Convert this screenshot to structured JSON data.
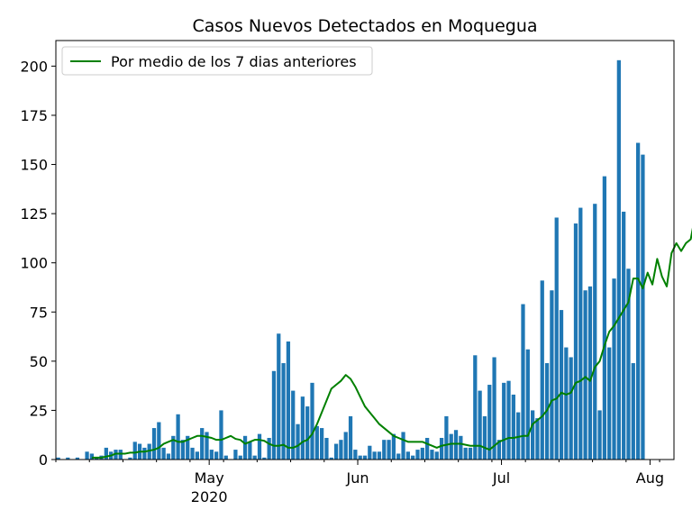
{
  "chart_data": {
    "type": "bar",
    "title": "Casos Nuevos Detectados en Moquegua",
    "xlabel": "",
    "ylabel": "",
    "ylim": [
      0,
      213
    ],
    "xlim": [
      "2020-03-30",
      "2020-08-06"
    ],
    "yticks": [
      0,
      25,
      50,
      75,
      100,
      125,
      150,
      175,
      200
    ],
    "xticks_major": [
      {
        "date": "2020-05-01",
        "label": "May",
        "sublabel": "2020"
      },
      {
        "date": "2020-06-01",
        "label": "Jun",
        "sublabel": ""
      },
      {
        "date": "2020-07-01",
        "label": "Jul",
        "sublabel": ""
      },
      {
        "date": "2020-08-01",
        "label": "Aug",
        "sublabel": ""
      }
    ],
    "grid": false,
    "legend_position": "upper-left",
    "colors": {
      "bars": "#1f77b4",
      "line": "#008000"
    },
    "bars": {
      "start_date": "2020-03-30",
      "values": [
        1,
        0,
        1,
        0,
        1,
        0,
        4,
        3,
        1,
        2,
        6,
        4,
        5,
        5,
        0,
        1,
        9,
        8,
        6,
        8,
        16,
        19,
        6,
        3,
        12,
        23,
        10,
        12,
        6,
        4,
        16,
        14,
        5,
        4,
        25,
        2,
        0,
        5,
        2,
        12,
        9,
        2,
        13,
        1,
        11,
        45,
        64,
        49,
        60,
        35,
        18,
        32,
        27,
        39,
        17,
        16,
        11,
        1,
        8,
        10,
        14,
        22,
        5,
        2,
        2,
        7,
        4,
        4,
        10,
        10,
        13,
        3,
        14,
        4,
        2,
        5,
        6,
        11,
        5,
        4,
        11,
        22,
        13,
        15,
        12,
        6,
        6,
        53,
        35,
        22,
        38,
        52,
        10,
        39,
        40,
        33,
        24,
        79,
        56,
        25,
        21,
        91,
        49,
        86,
        123,
        76,
        57,
        52,
        120,
        128,
        86,
        88,
        130,
        25,
        144,
        57,
        92,
        203,
        126,
        97,
        49,
        161,
        155
      ]
    },
    "series": [
      {
        "name": "Por medio de los 7 dias anteriores",
        "start_date": "2020-04-06",
        "values": [
          1,
          1,
          1,
          1.5,
          2,
          3,
          3,
          3,
          3.5,
          3.5,
          4,
          4,
          4.5,
          5,
          6,
          8,
          9,
          10,
          9,
          9,
          10,
          11,
          12,
          12,
          11.5,
          11,
          10,
          10,
          11,
          12,
          10.5,
          10,
          8,
          9,
          10,
          10,
          9.5,
          8,
          7,
          7,
          7.5,
          6,
          6,
          7,
          9,
          10,
          13,
          18,
          24,
          30,
          36,
          38,
          40,
          43,
          41,
          37,
          32,
          27,
          24,
          21,
          18,
          16,
          14,
          12,
          11,
          10,
          9,
          9,
          9,
          9,
          8,
          7,
          6,
          7,
          7.5,
          8,
          8,
          8,
          7.5,
          7,
          7,
          7,
          6,
          5,
          7,
          9,
          10,
          11,
          11,
          11.5,
          12,
          12,
          18,
          20,
          22,
          25,
          30,
          31,
          34,
          33,
          34,
          39,
          40,
          42,
          40,
          47,
          50,
          58,
          65,
          68,
          72,
          76,
          80,
          92,
          92,
          87,
          95,
          89,
          102,
          93,
          88,
          105,
          110,
          106,
          110,
          112,
          125
        ]
      }
    ]
  }
}
